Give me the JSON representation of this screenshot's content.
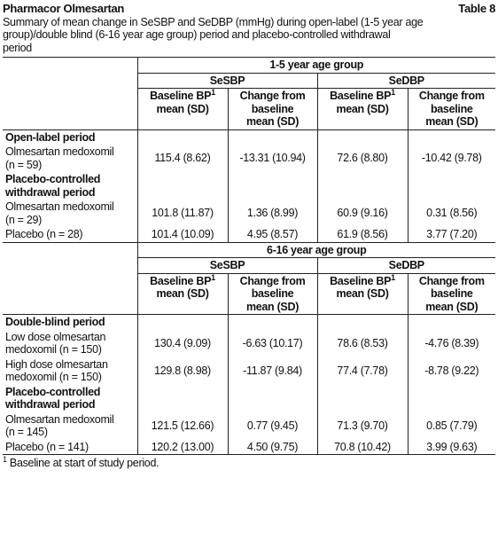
{
  "header": {
    "title": "Pharmacor Olmesartan",
    "table_number": "Table 8"
  },
  "caption": [
    "Summary of mean change in SeSBP and SeDBP (mmHg) during open-label (1-5 year age",
    "group)/double blind (6-16 year age group) period and placebo-controlled withdrawal",
    "period"
  ],
  "sections": [
    {
      "group": "1-5 year age group",
      "measures": [
        "SeSBP",
        "SeDBP"
      ],
      "columns": [
        {
          "lines": [
            "Baseline BP",
            "mean (SD)"
          ],
          "footnote_mark": "1"
        },
        {
          "lines": [
            "Change from",
            "baseline",
            "mean (SD)"
          ]
        },
        {
          "lines": [
            "Baseline BP",
            "mean (SD)"
          ],
          "footnote_mark": "1"
        },
        {
          "lines": [
            "Change from",
            "baseline",
            "mean (SD)"
          ]
        }
      ],
      "rows": [
        {
          "heading": [
            "Open-label period"
          ]
        },
        {
          "label": [
            "Olmesartan medoxomil",
            "(n = 59)"
          ],
          "values": [
            "115.4 (8.62)",
            "-13.31 (10.94)",
            "72.6 (8.80)",
            "-10.42 (9.78)"
          ]
        },
        {
          "heading": [
            "Placebo-controlled",
            "withdrawal period"
          ]
        },
        {
          "label": [
            "Olmesartan medoxomil",
            "(n = 29)"
          ],
          "values": [
            "101.8 (11.87)",
            "1.36 (8.99)",
            "60.9 (9.16)",
            "0.31 (8.56)"
          ]
        },
        {
          "label": [
            "Placebo (n = 28)"
          ],
          "values": [
            "101.4 (10.09)",
            "4.95 (8.57)",
            "61.9 (8.56)",
            "3.77 (7.20)"
          ]
        }
      ]
    },
    {
      "group": "6-16 year age group",
      "measures": [
        "SeSBP",
        "SeDBP"
      ],
      "columns": [
        {
          "lines": [
            "Baseline BP",
            "mean (SD)"
          ],
          "footnote_mark": "1"
        },
        {
          "lines": [
            "Change from",
            "baseline",
            "mean (SD)"
          ]
        },
        {
          "lines": [
            "Baseline BP",
            "mean (SD)"
          ],
          "footnote_mark": "1"
        },
        {
          "lines": [
            "Change from",
            "baseline",
            "mean (SD)"
          ]
        }
      ],
      "rows": [
        {
          "heading": [
            "Double-blind period"
          ]
        },
        {
          "label": [
            "Low dose olmesartan",
            "medoxomil (n = 150)"
          ],
          "values": [
            "130.4 (9.09)",
            "-6.63 (10.17)",
            "78.6 (8.53)",
            "-4.76 (8.39)"
          ]
        },
        {
          "label": [
            "High dose olmesartan",
            "medoxomil (n = 150)"
          ],
          "values": [
            "129.8 (8.98)",
            "-11.87 (9.84)",
            "77.4 (7.78)",
            "-8.78 (9.22)"
          ]
        },
        {
          "heading": [
            "Placebo-controlled",
            "withdrawal period"
          ]
        },
        {
          "label": [
            "Olmesartan medoxomil",
            "(n = 145)"
          ],
          "values": [
            "121.5 (12.66)",
            "0.77 (9.45)",
            "71.3 (9.70)",
            "0.85 (7.79)"
          ]
        },
        {
          "label": [
            "Placebo (n = 141)"
          ],
          "values": [
            "120.2 (13.00)",
            "4.50 (9.75)",
            "70.8 (10.42)",
            "3.99 (9.63)"
          ]
        }
      ]
    }
  ],
  "footnote": {
    "mark": "1",
    "text": "Baseline at start of study period."
  }
}
